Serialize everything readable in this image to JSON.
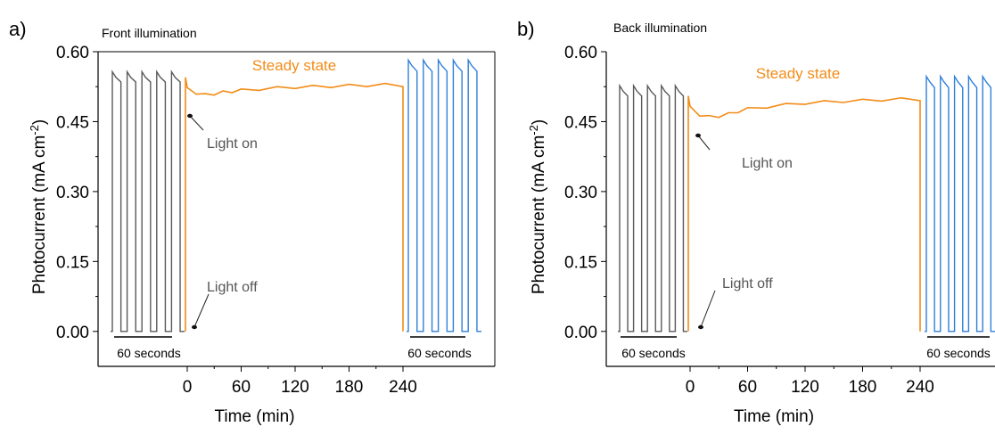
{
  "chart_data": [
    {
      "type": "line",
      "panel_label": "a)",
      "title": "Front illumination",
      "xlabel": "Time (min)",
      "ylabel": "Photocurrent (mA cm",
      "ylabel_sup": "-2",
      "ylabel_close": ")",
      "ylim": [
        -0.075,
        0.6
      ],
      "yticks": [
        "0.00",
        "0.15",
        "0.30",
        "0.45",
        "0.60"
      ],
      "xticks": [
        "0",
        "60",
        "120",
        "180",
        "240"
      ],
      "grid": false,
      "colors": {
        "dark_chop": "#595959",
        "steady": "#f28c18",
        "blue_chop": "#2f7fd9"
      },
      "left_chop": {
        "pulses": 5,
        "on": 0.545,
        "off": 0.0,
        "scale_label": "60 seconds"
      },
      "steady_state": {
        "label": "Steady state",
        "x_min": [
          0,
          10,
          20,
          30,
          40,
          50,
          60,
          80,
          100,
          120,
          140,
          160,
          180,
          200,
          220,
          240
        ],
        "y": [
          0.52,
          0.512,
          0.507,
          0.51,
          0.513,
          0.515,
          0.517,
          0.52,
          0.522,
          0.524,
          0.525,
          0.526,
          0.527,
          0.528,
          0.529,
          0.528
        ]
      },
      "right_chop": {
        "pulses": 5,
        "on": 0.57,
        "off": 0.0,
        "scale_label": "60 seconds"
      },
      "annotations": {
        "light_on": "Light on",
        "light_off": "Light off"
      }
    },
    {
      "type": "line",
      "panel_label": "b)",
      "title": "Back illumination",
      "xlabel": "Time (min)",
      "ylabel": "Photocurrent (mA cm",
      "ylabel_sup": "-2",
      "ylabel_close": ")",
      "ylim": [
        -0.075,
        0.6
      ],
      "yticks": [
        "0.00",
        "0.15",
        "0.30",
        "0.45",
        "0.60"
      ],
      "xticks": [
        "0",
        "60",
        "120",
        "180",
        "240"
      ],
      "grid": false,
      "colors": {
        "dark_chop": "#595959",
        "steady": "#f28c18",
        "blue_chop": "#2f7fd9"
      },
      "left_chop": {
        "pulses": 5,
        "on": 0.515,
        "off": 0.0,
        "scale_label": "60 seconds"
      },
      "steady_state": {
        "label": "Steady state",
        "x_min": [
          0,
          10,
          20,
          30,
          40,
          50,
          60,
          80,
          100,
          120,
          140,
          160,
          180,
          200,
          220,
          240
        ],
        "y": [
          0.48,
          0.465,
          0.46,
          0.462,
          0.466,
          0.472,
          0.477,
          0.482,
          0.486,
          0.49,
          0.492,
          0.494,
          0.495,
          0.497,
          0.498,
          0.498
        ]
      },
      "right_chop": {
        "pulses": 5,
        "on": 0.535,
        "off": 0.0,
        "scale_label": "60 seconds"
      },
      "annotations": {
        "light_on": "Light on",
        "light_off": "Light off"
      }
    }
  ]
}
